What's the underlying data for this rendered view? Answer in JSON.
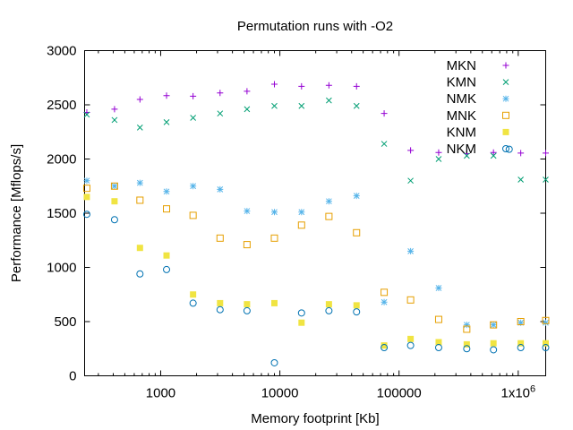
{
  "chart_data": {
    "type": "scatter",
    "title": "Permutation runs with -O2",
    "xlabel": "Memory footprint [Kb]",
    "ylabel": "Performance [Mflops/s]",
    "xscale": "log",
    "xlim": [
      230,
      1700000
    ],
    "ylim": [
      0,
      3000
    ],
    "yticks": [
      0,
      500,
      1000,
      1500,
      2000,
      2500,
      3000
    ],
    "xticks": [
      {
        "value": 1000,
        "label": "1000"
      },
      {
        "value": 10000,
        "label": "10000"
      },
      {
        "value": 100000,
        "label": "100000"
      },
      {
        "value": 1000000,
        "label": "1x10^6"
      }
    ],
    "grid": false,
    "legend_position": "top-right",
    "series": [
      {
        "name": "MKN",
        "marker": "plus",
        "color": "#9400d3",
        "points": [
          [
            240,
            2430
          ],
          [
            410,
            2460
          ],
          [
            670,
            2550
          ],
          [
            1120,
            2585
          ],
          [
            1870,
            2580
          ],
          [
            3150,
            2610
          ],
          [
            5300,
            2625
          ],
          [
            9000,
            2690
          ],
          [
            15200,
            2670
          ],
          [
            25800,
            2680
          ],
          [
            44000,
            2670
          ],
          [
            75000,
            2420
          ],
          [
            125000,
            2080
          ],
          [
            215000,
            2060
          ],
          [
            370000,
            2050
          ],
          [
            620000,
            2060
          ],
          [
            1050000,
            2055
          ],
          [
            1700000,
            2055
          ]
        ]
      },
      {
        "name": "KMN",
        "marker": "cross",
        "color": "#009e73",
        "points": [
          [
            240,
            2410
          ],
          [
            410,
            2360
          ],
          [
            670,
            2290
          ],
          [
            1120,
            2340
          ],
          [
            1870,
            2380
          ],
          [
            3150,
            2420
          ],
          [
            5300,
            2460
          ],
          [
            9000,
            2490
          ],
          [
            15200,
            2490
          ],
          [
            25800,
            2540
          ],
          [
            44000,
            2490
          ],
          [
            75000,
            2140
          ],
          [
            125000,
            1800
          ],
          [
            215000,
            2000
          ],
          [
            370000,
            2030
          ],
          [
            620000,
            2030
          ],
          [
            1050000,
            1810
          ],
          [
            1700000,
            1810
          ]
        ]
      },
      {
        "name": "NMK",
        "marker": "star",
        "color": "#56b4e9",
        "points": [
          [
            240,
            1800
          ],
          [
            410,
            1750
          ],
          [
            670,
            1780
          ],
          [
            1120,
            1700
          ],
          [
            1870,
            1750
          ],
          [
            3150,
            1720
          ],
          [
            5300,
            1520
          ],
          [
            9000,
            1510
          ],
          [
            15200,
            1510
          ],
          [
            25800,
            1610
          ],
          [
            44000,
            1660
          ],
          [
            75000,
            680
          ],
          [
            125000,
            1150
          ],
          [
            215000,
            810
          ],
          [
            370000,
            470
          ],
          [
            620000,
            470
          ],
          [
            1050000,
            490
          ],
          [
            1700000,
            490
          ]
        ]
      },
      {
        "name": "MNK",
        "marker": "square-open",
        "color": "#e69f00",
        "points": [
          [
            240,
            1730
          ],
          [
            410,
            1750
          ],
          [
            670,
            1620
          ],
          [
            1120,
            1540
          ],
          [
            1870,
            1480
          ],
          [
            3150,
            1270
          ],
          [
            5300,
            1210
          ],
          [
            9000,
            1270
          ],
          [
            15200,
            1390
          ],
          [
            25800,
            1470
          ],
          [
            44000,
            1320
          ],
          [
            75000,
            770
          ],
          [
            125000,
            700
          ],
          [
            215000,
            520
          ],
          [
            370000,
            430
          ],
          [
            620000,
            470
          ],
          [
            1050000,
            500
          ],
          [
            1700000,
            510
          ]
        ]
      },
      {
        "name": "KNM",
        "marker": "square-filled",
        "color": "#f0e442",
        "points": [
          [
            240,
            1650
          ],
          [
            410,
            1610
          ],
          [
            670,
            1180
          ],
          [
            1120,
            1110
          ],
          [
            1870,
            750
          ],
          [
            3150,
            670
          ],
          [
            5300,
            660
          ],
          [
            9000,
            670
          ],
          [
            15200,
            490
          ],
          [
            25800,
            660
          ],
          [
            44000,
            650
          ],
          [
            75000,
            280
          ],
          [
            125000,
            340
          ],
          [
            215000,
            310
          ],
          [
            370000,
            290
          ],
          [
            620000,
            300
          ],
          [
            1050000,
            300
          ],
          [
            1700000,
            300
          ]
        ]
      },
      {
        "name": "NKM",
        "marker": "circle-open",
        "color": "#0072b2",
        "points": [
          [
            240,
            1490
          ],
          [
            410,
            1440
          ],
          [
            670,
            940
          ],
          [
            1120,
            980
          ],
          [
            1870,
            670
          ],
          [
            3150,
            610
          ],
          [
            5300,
            600
          ],
          [
            9000,
            120
          ],
          [
            15200,
            580
          ],
          [
            25800,
            600
          ],
          [
            44000,
            590
          ],
          [
            75000,
            260
          ],
          [
            125000,
            280
          ],
          [
            215000,
            260
          ],
          [
            370000,
            250
          ],
          [
            620000,
            240
          ],
          [
            840000,
            2090
          ],
          [
            1050000,
            260
          ],
          [
            1700000,
            260
          ]
        ]
      }
    ]
  }
}
